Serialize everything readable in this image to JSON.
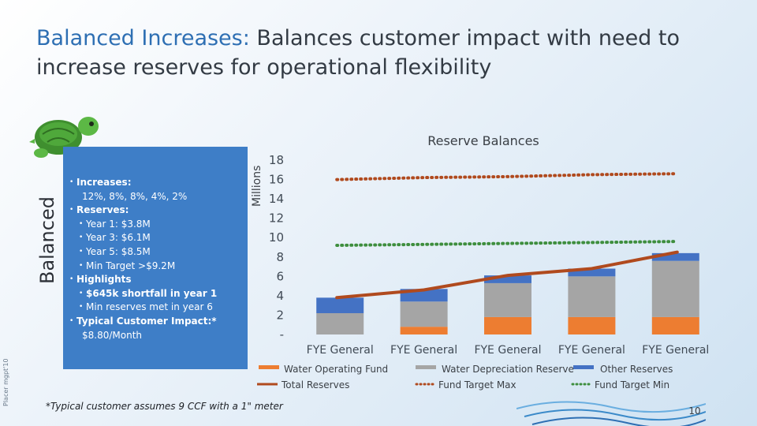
{
  "title": {
    "accent": "Balanced Increases:",
    "rest": " Balances customer impact with need to increase reserves for operational flexibility"
  },
  "side_label": "Balanced",
  "tiny_label": "Placer mgpt'10",
  "icon": "turtle-icon",
  "bullets": [
    {
      "kind": "main",
      "bold": "Increases:",
      "text": ""
    },
    {
      "kind": "cont",
      "bold": "",
      "text": "12%, 8%, 8%, 4%, 2%"
    },
    {
      "kind": "main",
      "bold": "Reserves:",
      "text": ""
    },
    {
      "kind": "sub",
      "bold": "",
      "text": "Year 1: $3.8M"
    },
    {
      "kind": "sub",
      "bold": "",
      "text": "Year 3: $6.1M"
    },
    {
      "kind": "sub",
      "bold": "",
      "text": "Year 5: $8.5M"
    },
    {
      "kind": "sub",
      "bold": "",
      "text": "Min Target >$9.2M"
    },
    {
      "kind": "main",
      "bold": "Highlights",
      "text": ""
    },
    {
      "kind": "sub",
      "bold": "$645k shortfall in year 1",
      "text": ""
    },
    {
      "kind": "sub",
      "bold": "",
      "text": "Min reserves met in year 6"
    },
    {
      "kind": "main",
      "bold": "Typical Customer Impact:*",
      "text": ""
    },
    {
      "kind": "cont",
      "bold": "",
      "text": "$8.80/Month"
    }
  ],
  "footnote": "*Typical customer assumes 9 CCF with a 1\" meter",
  "page_number": "10",
  "colors": {
    "water_operating": "#ed7d31",
    "water_depreciation": "#a5a5a5",
    "other_reserves": "#4472c4",
    "total_reserves": "#b04a1e",
    "fund_target_max": "#b04a1e",
    "fund_target_min": "#3e8e3e",
    "panel": "#3e7ec7"
  },
  "chart_data": {
    "type": "bar",
    "stacked": true,
    "title": "Reserve Balances",
    "ylabel": "Millions",
    "ylim": [
      0,
      18
    ],
    "yticks": [
      "-",
      "2",
      "4",
      "6",
      "8",
      "10",
      "12",
      "14",
      "16",
      "18"
    ],
    "categories": [
      "FYE General",
      "FYE General",
      "FYE General",
      "FYE General",
      "FYE General"
    ],
    "series": [
      {
        "name": "Water Operating Fund",
        "type": "bar",
        "values": [
          0,
          0.8,
          1.8,
          1.8,
          1.8
        ]
      },
      {
        "name": "Water Depreciation Reserve",
        "type": "bar",
        "values": [
          2.2,
          2.6,
          3.5,
          4.2,
          5.8
        ]
      },
      {
        "name": "Other Reserves",
        "type": "bar",
        "values": [
          1.6,
          1.3,
          0.8,
          0.8,
          0.8
        ]
      },
      {
        "name": "Total Reserves",
        "type": "line",
        "style": "solid",
        "values": [
          3.8,
          4.6,
          6.1,
          6.8,
          8.5
        ]
      },
      {
        "name": "Fund Target Max",
        "type": "line",
        "style": "dotted",
        "values": [
          16.0,
          16.2,
          16.3,
          16.5,
          16.6
        ]
      },
      {
        "name": "Fund Target Min",
        "type": "line",
        "style": "dotted",
        "values": [
          9.2,
          9.3,
          9.4,
          9.5,
          9.6
        ]
      }
    ],
    "legend_position": "bottom"
  }
}
